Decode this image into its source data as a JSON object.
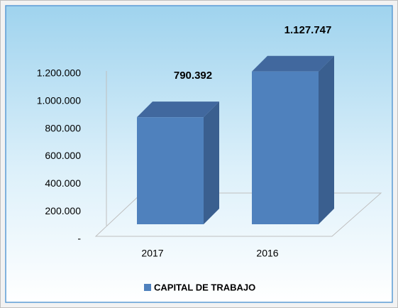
{
  "chart_data": {
    "type": "bar3d",
    "categories": [
      "2017",
      "2016"
    ],
    "series": [
      {
        "name": "CAPITAL DE TRABAJO",
        "color": "#4f81bd",
        "values": [
          790392,
          1127747
        ],
        "value_labels": [
          "790.392",
          "1.127.747"
        ]
      }
    ],
    "ylim": [
      0,
      1200000
    ],
    "yticks": [
      {
        "value": 0,
        "label": "-"
      },
      {
        "value": 200000,
        "label": "200.000"
      },
      {
        "value": 400000,
        "label": "400.000"
      },
      {
        "value": 600000,
        "label": "600.000"
      },
      {
        "value": 800000,
        "label": "800.000"
      },
      {
        "value": 1000000,
        "label": "1.000.000"
      },
      {
        "value": 1200000,
        "label": "1.200.000"
      }
    ],
    "legend": "bottom"
  }
}
